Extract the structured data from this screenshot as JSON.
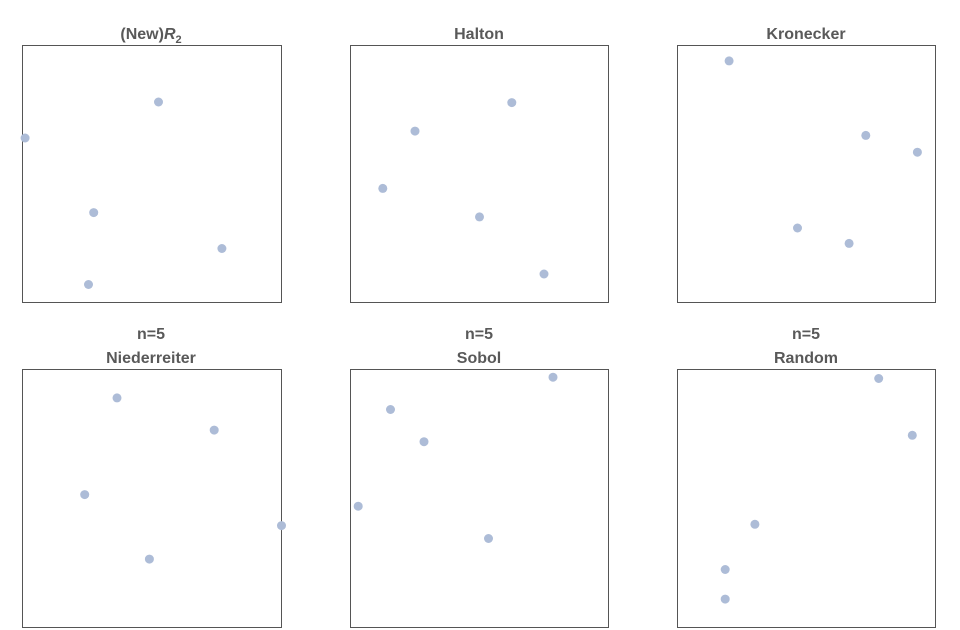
{
  "figure": {
    "point_color": "#adbcd7",
    "frame_color": "#555555",
    "title_color": "#595959"
  },
  "chart_data": [
    {
      "type": "scatter",
      "title_main": "(New)",
      "title_italic": "R",
      "title_sub": "2",
      "subtitle": "",
      "xlim": [
        0,
        1
      ],
      "ylim": [
        0,
        1
      ],
      "grid": false,
      "x": [
        0.01,
        0.525,
        0.275,
        0.77,
        0.255
      ],
      "y": [
        0.64,
        0.78,
        0.35,
        0.21,
        0.07
      ]
    },
    {
      "type": "scatter",
      "title": "Halton",
      "subtitle": "",
      "xlim": [
        0,
        1
      ],
      "ylim": [
        0,
        1
      ],
      "grid": false,
      "x": [
        0.25,
        0.625,
        0.125,
        0.5,
        0.75
      ],
      "y": [
        0.667,
        0.778,
        0.444,
        0.333,
        0.111
      ]
    },
    {
      "type": "scatter",
      "title": "Kronecker",
      "subtitle": "",
      "xlim": [
        0,
        1
      ],
      "ylim": [
        0,
        1
      ],
      "grid": false,
      "x": [
        0.2,
        0.73,
        0.93,
        0.465,
        0.665
      ],
      "y": [
        0.94,
        0.65,
        0.585,
        0.29,
        0.23
      ]
    },
    {
      "type": "scatter",
      "title": "Niederreiter",
      "subtitle": "n=5",
      "xlim": [
        0,
        1
      ],
      "ylim": [
        0,
        1
      ],
      "grid": false,
      "x": [
        0.365,
        0.74,
        0.24,
        1.0,
        0.49
      ],
      "y": [
        0.89,
        0.765,
        0.515,
        0.395,
        0.265
      ]
    },
    {
      "type": "scatter",
      "title": "Sobol",
      "subtitle": "n=5",
      "xlim": [
        0,
        1
      ],
      "ylim": [
        0,
        1
      ],
      "grid": false,
      "x": [
        0.785,
        0.155,
        0.285,
        0.03,
        0.535
      ],
      "y": [
        0.97,
        0.845,
        0.72,
        0.47,
        0.345
      ]
    },
    {
      "type": "scatter",
      "title": "Random",
      "subtitle": "n=5",
      "xlim": [
        0,
        1
      ],
      "ylim": [
        0,
        1
      ],
      "grid": false,
      "x": [
        0.78,
        0.91,
        0.3,
        0.185,
        0.185
      ],
      "y": [
        0.965,
        0.745,
        0.4,
        0.225,
        0.11
      ]
    }
  ]
}
